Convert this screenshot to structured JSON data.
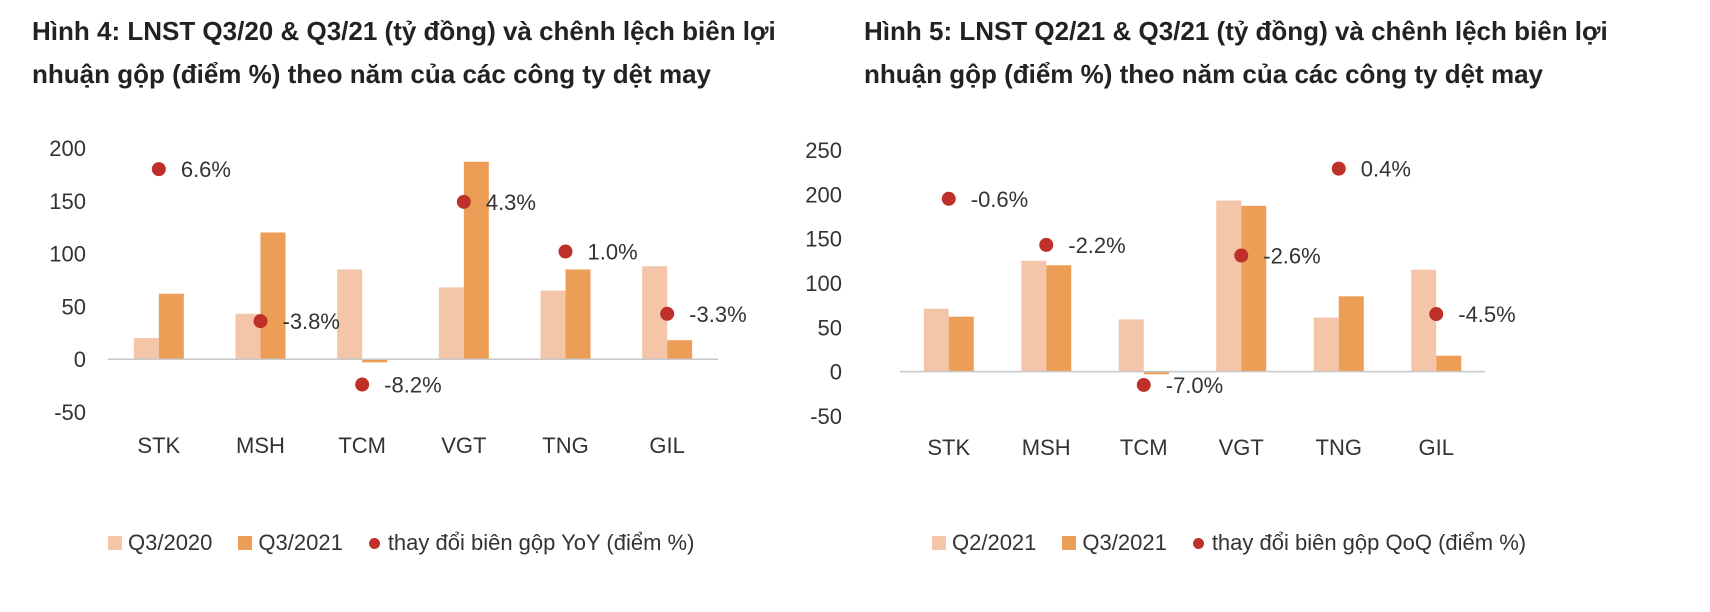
{
  "colors": {
    "series_light": "#f4c5a9",
    "series_dark": "#ec9e57",
    "marker": "#c0302a",
    "axis": "#c8c8c8"
  },
  "chart_data": [
    {
      "type": "bar",
      "title": "Hình 4: LNST Q3/20 & Q3/21 (tỷ đồng) và chênh lệch biên lợi nhuận gộp (điểm %) theo năm của các công ty dệt may",
      "categories": [
        "STK",
        "MSH",
        "TCM",
        "VGT",
        "TNG",
        "GIL"
      ],
      "ylim": [
        -50,
        200
      ],
      "yticks": [
        "200",
        "150",
        "100",
        "50",
        "0",
        "-50"
      ],
      "series": [
        {
          "name": "Q3/2020",
          "values": [
            20,
            43,
            85,
            68,
            65,
            88
          ]
        },
        {
          "name": "Q3/2021",
          "values": [
            62,
            120,
            -3,
            187,
            85,
            18
          ]
        }
      ],
      "markers": {
        "name": "thay đổi biên gộp YoY (điểm %)",
        "positions": [
          180,
          36,
          -24,
          149,
          102,
          43
        ],
        "labels": [
          "6.6%",
          "-3.8%",
          "-8.2%",
          "4.3%",
          "1.0%",
          "-3.3%"
        ]
      },
      "legend": [
        "Q3/2020",
        "Q3/2021",
        "thay đổi biên gộp YoY (điểm %)"
      ]
    },
    {
      "type": "bar",
      "title": "Hình 5: LNST Q2/21 & Q3/21 (tỷ đồng) và chênh lệch biên lợi nhuận gộp (điểm %) theo năm của các công ty dệt may",
      "categories": [
        "STK",
        "MSH",
        "TCM",
        "VGT",
        "TNG",
        "GIL"
      ],
      "ylim": [
        -50,
        250
      ],
      "yticks": [
        "250",
        "200",
        "150",
        "100",
        "50",
        "0",
        "-50"
      ],
      "series": [
        {
          "name": "Q2/2021",
          "values": [
            71,
            125,
            59,
            193,
            61,
            115
          ]
        },
        {
          "name": "Q3/2021",
          "values": [
            62,
            120,
            -3,
            187,
            85,
            18
          ]
        }
      ],
      "markers": {
        "name": "thay đổi biên gộp QoQ (điểm %)",
        "positions": [
          195,
          143,
          -15,
          131,
          229,
          65
        ],
        "labels": [
          "-0.6%",
          "-2.2%",
          "-7.0%",
          "-2.6%",
          "0.4%",
          "-4.5%"
        ]
      },
      "legend": [
        "Q2/2021",
        "Q3/2021",
        "thay đổi biên gộp QoQ (điểm %)"
      ]
    }
  ]
}
